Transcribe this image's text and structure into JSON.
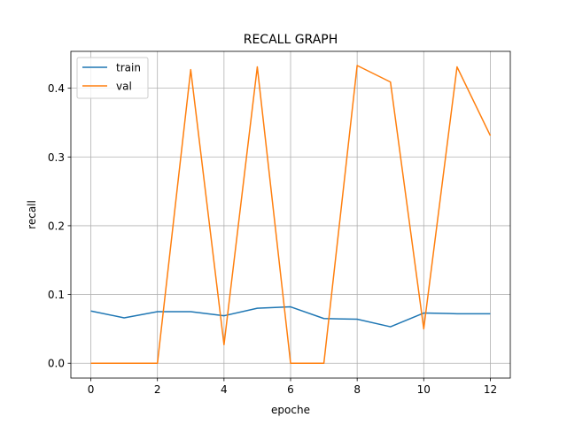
{
  "chart_data": {
    "type": "line",
    "title": "RECALL GRAPH",
    "xlabel": "epoche",
    "ylabel": "recall",
    "xlim": [
      -0.6,
      12.6
    ],
    "ylim": [
      -0.0216,
      0.4536
    ],
    "xticks": [
      0,
      2,
      4,
      6,
      8,
      10,
      12
    ],
    "yticks": [
      0.0,
      0.1,
      0.2,
      0.3,
      0.4
    ],
    "xtick_labels": [
      "0",
      "2",
      "4",
      "6",
      "8",
      "10",
      "12"
    ],
    "ytick_labels": [
      "0.0",
      "0.1",
      "0.2",
      "0.3",
      "0.4"
    ],
    "grid": true,
    "legend": "upper-left",
    "x": [
      0,
      1,
      2,
      3,
      4,
      5,
      6,
      7,
      8,
      9,
      10,
      11,
      12
    ],
    "series": [
      {
        "name": "train",
        "color": "#1f77b4",
        "values": [
          0.076,
          0.066,
          0.075,
          0.075,
          0.069,
          0.08,
          0.082,
          0.065,
          0.064,
          0.053,
          0.073,
          0.072,
          0.072
        ]
      },
      {
        "name": "val",
        "color": "#ff7f0e",
        "values": [
          0.0,
          0.0,
          0.0,
          0.427,
          0.027,
          0.431,
          0.0,
          0.0,
          0.433,
          0.409,
          0.05,
          0.431,
          0.331
        ]
      }
    ]
  }
}
